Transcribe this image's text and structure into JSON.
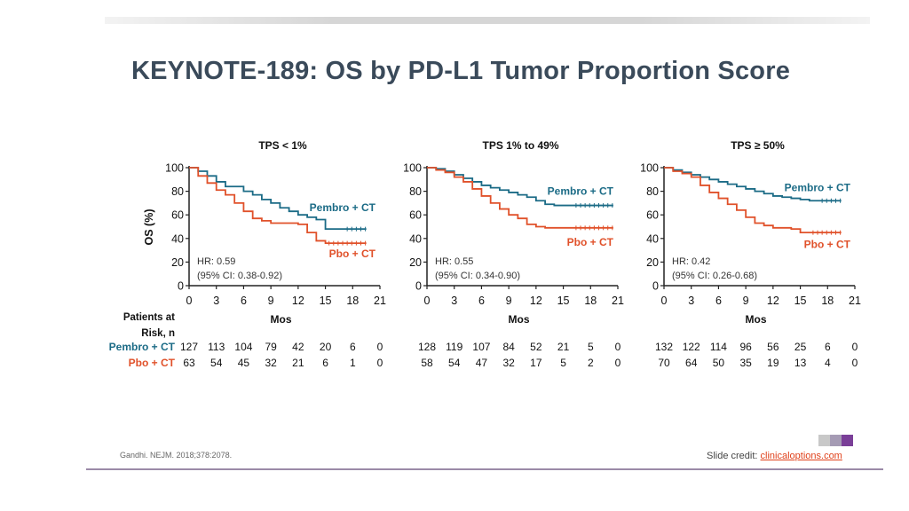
{
  "title": "KEYNOTE-189: OS by PD-L1 Tumor Proportion Score",
  "ylabel": "OS (%)",
  "risk_header": [
    "Patients at",
    "Risk, n"
  ],
  "colors": {
    "pembro": "#1b6b86",
    "pbo": "#e0512a",
    "title": "#3a4a5a",
    "axis": "#222222"
  },
  "citation": "Gandhi. NEJM. 2018;378:2078.",
  "credit": {
    "prefix": "Slide credit: ",
    "link": "clinicaloptions.com"
  },
  "chart_data": [
    {
      "type": "line",
      "title": "TPS < 1%",
      "xlabel": "Mos",
      "ylabel": "OS (%)",
      "xlim": [
        0,
        21
      ],
      "ylim": [
        0,
        100
      ],
      "xticks": [
        0,
        3,
        6,
        9,
        12,
        15,
        18,
        21
      ],
      "yticks": [
        0,
        20,
        40,
        60,
        80,
        100
      ],
      "hr_text": "HR: 0.59",
      "ci_text": "(95% CI: 0.38-0.92)",
      "series": [
        {
          "name": "Pembro + CT",
          "label_pos": "upper",
          "x": [
            0,
            1,
            2,
            3,
            4,
            5,
            6,
            7,
            8,
            9,
            10,
            11,
            12,
            13,
            14,
            15,
            16,
            17,
            18,
            19.5
          ],
          "y": [
            100,
            97,
            93,
            88,
            84,
            84,
            80,
            77,
            73,
            70,
            66,
            63,
            60,
            58,
            56,
            48,
            48,
            48,
            48,
            48
          ]
        },
        {
          "name": "Pbo + CT",
          "label_pos": "lower",
          "x": [
            0,
            1,
            2,
            3,
            4,
            5,
            6,
            7,
            8,
            9,
            10,
            11,
            12,
            13,
            14,
            15,
            17,
            19.5
          ],
          "y": [
            100,
            93,
            87,
            81,
            77,
            70,
            63,
            57,
            55,
            53,
            53,
            53,
            52,
            45,
            38,
            36,
            36,
            36
          ]
        }
      ],
      "at_risk": {
        "Pembro + CT": [
          127,
          113,
          104,
          79,
          42,
          20,
          6,
          0
        ],
        "Pbo + CT": [
          63,
          54,
          45,
          32,
          21,
          6,
          1,
          0
        ]
      }
    },
    {
      "type": "line",
      "title": "TPS 1% to 49%",
      "xlabel": "Mos",
      "ylabel": "OS (%)",
      "xlim": [
        0,
        21
      ],
      "ylim": [
        0,
        100
      ],
      "xticks": [
        0,
        3,
        6,
        9,
        12,
        15,
        18,
        21
      ],
      "yticks": [
        0,
        20,
        40,
        60,
        80,
        100
      ],
      "hr_text": "HR: 0.55",
      "ci_text": "(95% CI: 0.34-0.90)",
      "series": [
        {
          "name": "Pembro + CT",
          "label_pos": "upper",
          "x": [
            0,
            1,
            2,
            3,
            4,
            5,
            6,
            7,
            8,
            9,
            10,
            11,
            12,
            13,
            14,
            16,
            18,
            20.5
          ],
          "y": [
            100,
            99,
            97,
            94,
            91,
            88,
            85,
            83,
            81,
            79,
            77,
            75,
            72,
            69,
            68,
            68,
            68,
            68
          ]
        },
        {
          "name": "Pbo + CT",
          "label_pos": "lower",
          "x": [
            0,
            1,
            2,
            3,
            4,
            5,
            6,
            7,
            8,
            9,
            10,
            11,
            12,
            13,
            14,
            16,
            18,
            20.5
          ],
          "y": [
            100,
            98,
            96,
            92,
            88,
            82,
            76,
            70,
            65,
            60,
            57,
            52,
            50,
            49,
            49,
            49,
            49,
            49
          ]
        }
      ],
      "at_risk": {
        "Pembro + CT": [
          128,
          119,
          107,
          84,
          52,
          21,
          5,
          0
        ],
        "Pbo + CT": [
          58,
          54,
          47,
          32,
          17,
          5,
          2,
          0
        ]
      }
    },
    {
      "type": "line",
      "title": "TPS ≥ 50%",
      "xlabel": "Mos",
      "ylabel": "OS (%)",
      "xlim": [
        0,
        21
      ],
      "ylim": [
        0,
        100
      ],
      "xticks": [
        0,
        3,
        6,
        9,
        12,
        15,
        18,
        21
      ],
      "yticks": [
        0,
        20,
        40,
        60,
        80,
        100
      ],
      "hr_text": "HR: 0.42",
      "ci_text": "(95% CI: 0.26-0.68)",
      "series": [
        {
          "name": "Pembro + CT",
          "label_pos": "upper",
          "x": [
            0,
            1,
            2,
            3,
            4,
            5,
            6,
            7,
            8,
            9,
            10,
            11,
            12,
            13,
            14,
            15,
            16,
            17,
            18,
            19.5
          ],
          "y": [
            100,
            98,
            96,
            94,
            92,
            90,
            88,
            86,
            84,
            82,
            80,
            78,
            76,
            75,
            74,
            73,
            72,
            72,
            72,
            72
          ]
        },
        {
          "name": "Pbo + CT",
          "label_pos": "lower",
          "x": [
            0,
            1,
            2,
            3,
            4,
            5,
            6,
            7,
            8,
            9,
            10,
            11,
            12,
            13,
            14,
            15,
            16,
            17,
            19.5
          ],
          "y": [
            100,
            97,
            95,
            92,
            85,
            79,
            74,
            69,
            64,
            58,
            53,
            51,
            49,
            49,
            48,
            45,
            45,
            45,
            45
          ]
        }
      ],
      "at_risk": {
        "Pembro + CT": [
          132,
          122,
          114,
          96,
          56,
          25,
          6,
          0
        ],
        "Pbo + CT": [
          70,
          64,
          50,
          35,
          19,
          13,
          4,
          0
        ]
      }
    }
  ]
}
